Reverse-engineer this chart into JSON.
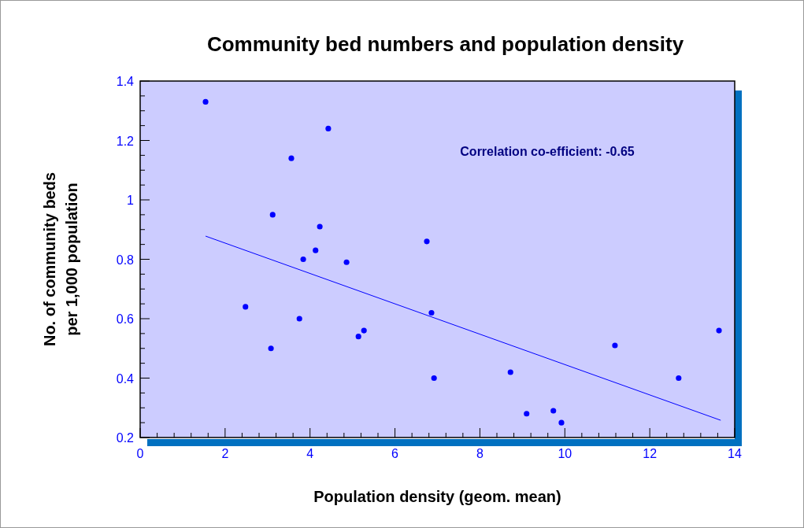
{
  "chart_data": {
    "type": "scatter",
    "title": "Community bed numbers and population density",
    "xlabel": "Population density (geom. mean)",
    "ylabel": "No. of community beds per 1,000 population",
    "annotations": [
      "Correlation co-efficient: -0.65"
    ],
    "series": [
      {
        "color": "#0000ff",
        "marker": "circle",
        "x": [
          1.54,
          2.48,
          3.08,
          3.12,
          3.56,
          3.75,
          3.84,
          4.13,
          4.23,
          4.43,
          4.86,
          5.14,
          5.27,
          6.75,
          6.86,
          6.92,
          8.72,
          9.1,
          9.73,
          9.92,
          11.18,
          12.68,
          13.63
        ],
        "values": [
          1.33,
          0.64,
          0.5,
          0.95,
          1.14,
          0.6,
          0.8,
          0.83,
          0.91,
          1.24,
          0.79,
          0.54,
          0.56,
          0.86,
          0.62,
          0.4,
          0.42,
          0.28,
          0.29,
          0.25,
          0.51,
          0.4,
          0.56
        ]
      },
      {
        "type": "line",
        "color": "#0000ff",
        "marker": "none",
        "x": [
          1.54,
          13.67
        ],
        "values": [
          0.878,
          0.258
        ]
      }
    ],
    "xlim": [
      0,
      14
    ],
    "xticks": [
      0,
      2,
      4,
      6,
      8,
      10,
      12,
      14
    ],
    "ylim": [
      0.2,
      1.4
    ],
    "yticks": [
      0.2,
      0.4,
      0.6,
      0.8,
      1,
      1.2,
      1.4
    ],
    "grid": false
  }
}
